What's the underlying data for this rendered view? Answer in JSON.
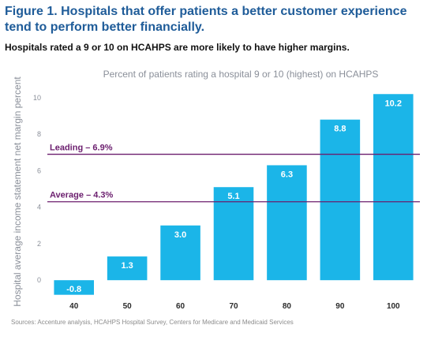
{
  "figure": {
    "title": "Figure 1. Hospitals that offer patients a better customer experience tend to perform better financially.",
    "subtitle": "Hospitals rated a 9 or 10 on HCAHPS are more likely to have higher margins.",
    "source": "Sources: Accenture analysis, HCAHPS Hospital Survey, Centers for Medicare and Medicaid Services"
  },
  "chart_data": {
    "type": "bar",
    "title": "Percent of patients rating a hospital 9 or 10 (highest) on HCAHPS",
    "xlabel": "",
    "ylabel": "Hospital average income statement net margin percent",
    "categories": [
      "40",
      "50",
      "60",
      "70",
      "80",
      "90",
      "100"
    ],
    "values": [
      -0.8,
      1.3,
      3.0,
      5.1,
      6.3,
      8.8,
      10.2
    ],
    "data_labels": [
      "-0.8",
      "1.3",
      "3.0",
      "5.1",
      "6.3",
      "8.8",
      "10.2"
    ],
    "yticks": [
      0,
      2,
      4,
      6,
      8,
      10
    ],
    "ylim": [
      -0.9,
      10.6
    ],
    "grid": false,
    "bar_color": "#1bb5e8",
    "reference_lines": [
      {
        "label": "Leading – 6.9%",
        "value": 6.9,
        "color": "#6b1e6e"
      },
      {
        "label": "Average – 4.3%",
        "value": 4.3,
        "color": "#6b1e6e"
      }
    ]
  }
}
